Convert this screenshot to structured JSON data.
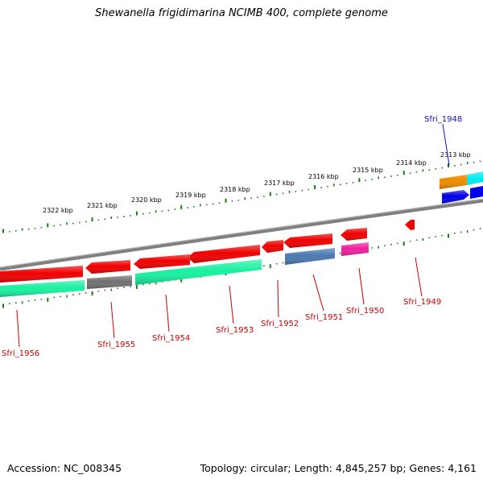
{
  "title": "Shewanella frigidimarina NCIMB 400, complete genome",
  "footer": {
    "accession": "Accession: NC_008345",
    "summary": "Topology: circular; Length: 4,845,257 bp; Genes: 4,161"
  },
  "colors": {
    "backbone": "#808080",
    "tick": "#1a7a1a",
    "forward_label": "#1010c8",
    "reverse_label": "#c80000",
    "gene_red": "#f00000",
    "cds_aqua": "#18f0a0",
    "cds_gray": "#707070",
    "cds_steelblue": "#4a78b0",
    "cds_pink": "#f020a0",
    "gene_orange": "#f08c00",
    "gene_cyan": "#00e8f0",
    "gene_blue": "#0000e8"
  },
  "kbp_ticks": [
    "2322 kbp",
    "2321 kbp",
    "2320 kbp",
    "2319 kbp",
    "2318 kbp",
    "2317 kbp",
    "2316 kbp",
    "2315 kbp",
    "2314 kbp",
    "2313 kbp"
  ],
  "gene_labels": [
    "Sfri_1948",
    "Sfri_1949",
    "Sfri_1950",
    "Sfri_1951",
    "Sfri_1952",
    "Sfri_1953",
    "Sfri_1954",
    "Sfri_1955",
    "Sfri_1956"
  ]
}
